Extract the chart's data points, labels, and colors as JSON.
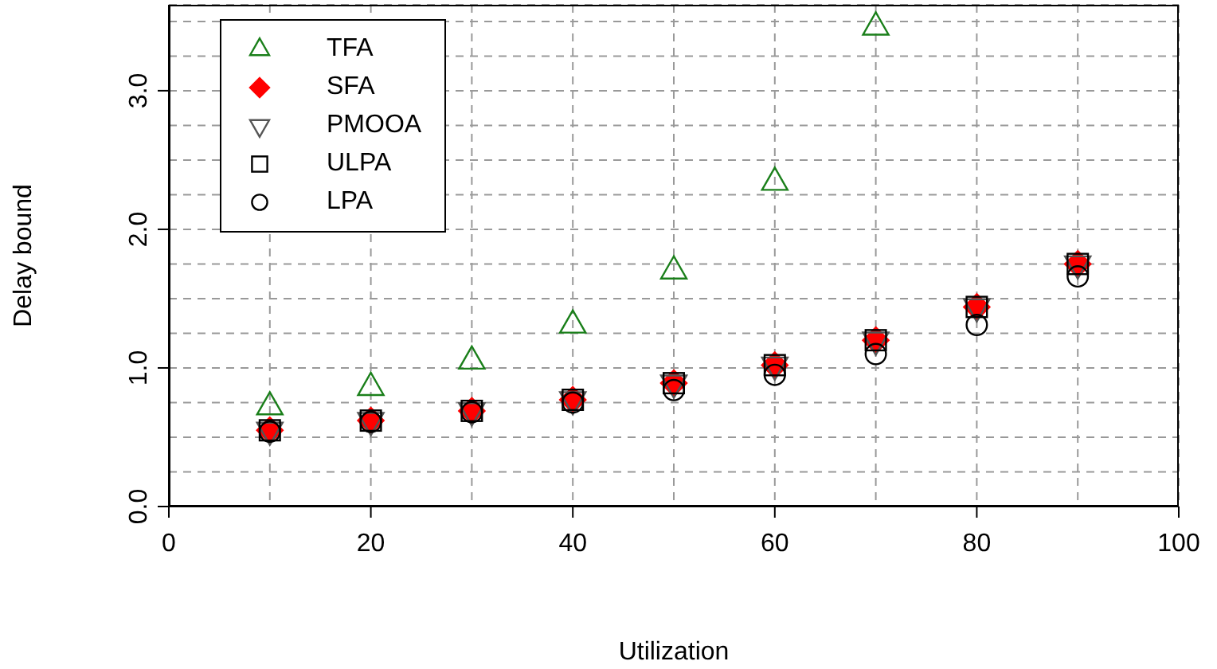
{
  "chart_data": {
    "type": "scatter",
    "xlabel": "Utilization",
    "ylabel": "Delay bound",
    "x": [
      10,
      20,
      30,
      40,
      50,
      60,
      70,
      80,
      90
    ],
    "series": [
      {
        "name": "TFA",
        "color": "#1a7f1a",
        "marker": "triangle",
        "values": [
          0.72,
          0.86,
          1.05,
          1.31,
          1.7,
          2.34,
          3.46,
          null,
          null
        ]
      },
      {
        "name": "SFA",
        "color": "#ff0000",
        "marker": "diamond",
        "values": [
          0.55,
          0.62,
          0.69,
          0.77,
          0.89,
          1.02,
          1.2,
          1.44,
          1.75
        ]
      },
      {
        "name": "PMOOA",
        "color": "#555555",
        "marker": "triangle-down",
        "values": [
          0.55,
          0.62,
          0.69,
          0.77,
          0.89,
          1.02,
          1.2,
          1.44,
          1.75
        ]
      },
      {
        "name": "ULPA",
        "color": "#000000",
        "marker": "square",
        "values": [
          0.55,
          0.62,
          0.69,
          0.77,
          0.89,
          1.02,
          1.2,
          1.44,
          1.75
        ]
      },
      {
        "name": "LPA",
        "color": "#000000",
        "marker": "circle",
        "values": [
          0.54,
          0.61,
          0.68,
          0.75,
          0.84,
          0.95,
          1.1,
          1.31,
          1.66
        ]
      }
    ],
    "xlim": [
      0,
      100
    ],
    "xticks": [
      0,
      {
        "value": 10,
        "label": null
      },
      20,
      {
        "value": 30,
        "label": null
      },
      40,
      {
        "value": 50,
        "label": null
      },
      60,
      {
        "value": 70,
        "label": null
      },
      80,
      {
        "value": 90,
        "label": null
      },
      100
    ],
    "ylim": [
      0,
      3.62
    ],
    "yticks": [
      {
        "value": 0,
        "label": "0.0"
      },
      {
        "value": 0.25,
        "label": null
      },
      {
        "value": 0.5,
        "label": null
      },
      {
        "value": 0.75,
        "label": null
      },
      {
        "value": 1,
        "label": "1.0"
      },
      {
        "value": 1.25,
        "label": null
      },
      {
        "value": 1.5,
        "label": null
      },
      {
        "value": 1.75,
        "label": null
      },
      {
        "value": 2,
        "label": "2.0"
      },
      {
        "value": 2.25,
        "label": null
      },
      {
        "value": 2.5,
        "label": null
      },
      {
        "value": 2.75,
        "label": null
      },
      {
        "value": 3,
        "label": "3.0"
      },
      {
        "value": 3.25,
        "label": null
      },
      {
        "value": 3.5,
        "label": null
      }
    ],
    "grid": true,
    "legend": "top left"
  }
}
